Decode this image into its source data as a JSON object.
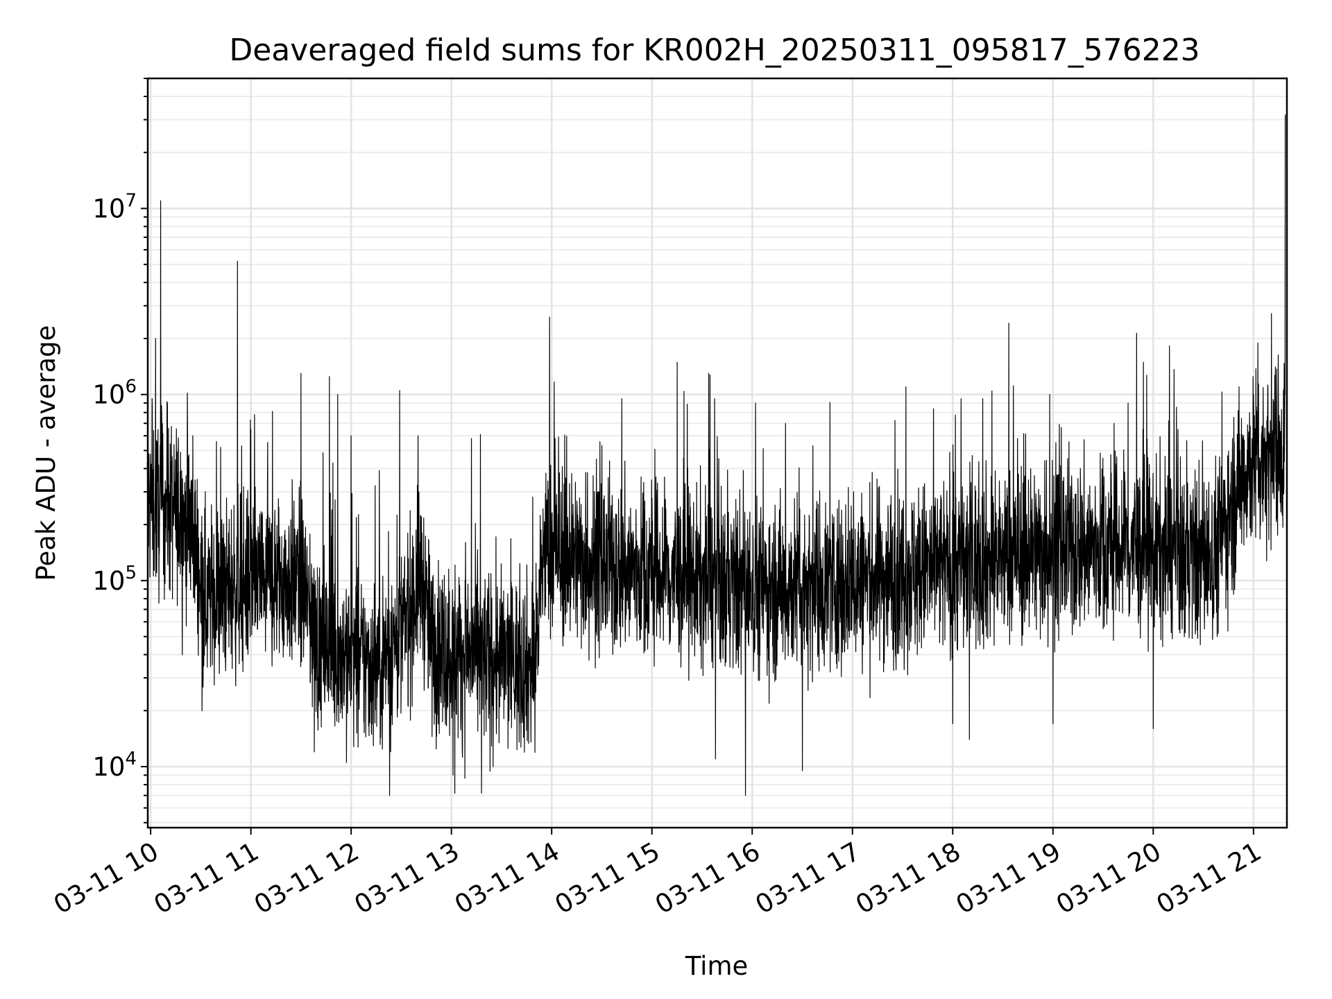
{
  "chart_data": {
    "type": "line",
    "title": "Deaveraged field sums for KR002H_20250311_095817_576223",
    "xlabel": "Time",
    "ylabel": "Peak ADU - average",
    "yscale": "log",
    "ylim": [
      4700,
      50000000
    ],
    "xlim": [
      "2025-03-11T09:58:17",
      "2025-03-11T21:20:00"
    ],
    "grid": true,
    "line_color": "#000000",
    "x_ticks": [
      {
        "t": "2025-03-11T10:00",
        "label": "03-11 10"
      },
      {
        "t": "2025-03-11T11:00",
        "label": "03-11 11"
      },
      {
        "t": "2025-03-11T12:00",
        "label": "03-11 12"
      },
      {
        "t": "2025-03-11T13:00",
        "label": "03-11 13"
      },
      {
        "t": "2025-03-11T14:00",
        "label": "03-11 14"
      },
      {
        "t": "2025-03-11T15:00",
        "label": "03-11 15"
      },
      {
        "t": "2025-03-11T16:00",
        "label": "03-11 16"
      },
      {
        "t": "2025-03-11T17:00",
        "label": "03-11 17"
      },
      {
        "t": "2025-03-11T18:00",
        "label": "03-11 18"
      },
      {
        "t": "2025-03-11T19:00",
        "label": "03-11 19"
      },
      {
        "t": "2025-03-11T20:00",
        "label": "03-11 20"
      },
      {
        "t": "2025-03-11T21:00",
        "label": "03-11 21"
      }
    ],
    "y_ticks": [
      {
        "value": 10000,
        "base": "10",
        "exp": "4"
      },
      {
        "value": 100000,
        "base": "10",
        "exp": "5"
      },
      {
        "value": 1000000,
        "base": "10",
        "exp": "6"
      },
      {
        "value": 10000000,
        "base": "10",
        "exp": "7"
      }
    ],
    "series": [
      {
        "baseline": [
          {
            "t": "2025-03-11T09:58",
            "value": 250000
          },
          {
            "t": "2025-03-11T10:10",
            "value": 250000
          },
          {
            "t": "2025-03-11T10:25",
            "value": 200000
          },
          {
            "t": "2025-03-11T10:32",
            "value": 80000
          },
          {
            "t": "2025-03-11T11:00",
            "value": 100000
          },
          {
            "t": "2025-03-11T11:30",
            "value": 100000
          },
          {
            "t": "2025-03-11T11:40",
            "value": 45000
          },
          {
            "t": "2025-03-11T12:15",
            "value": 35000
          },
          {
            "t": "2025-03-11T12:30",
            "value": 50000
          },
          {
            "t": "2025-03-11T12:42",
            "value": 110000
          },
          {
            "t": "2025-03-11T12:48",
            "value": 45000
          },
          {
            "t": "2025-03-11T13:10",
            "value": 40000
          },
          {
            "t": "2025-03-11T13:50",
            "value": 35000
          },
          {
            "t": "2025-03-11T13:55",
            "value": 150000
          },
          {
            "t": "2025-03-11T14:30",
            "value": 120000
          },
          {
            "t": "2025-03-11T15:30",
            "value": 100000
          },
          {
            "t": "2025-03-11T16:00",
            "value": 90000
          },
          {
            "t": "2025-03-11T17:00",
            "value": 100000
          },
          {
            "t": "2025-03-11T18:00",
            "value": 120000
          },
          {
            "t": "2025-03-11T19:00",
            "value": 150000
          },
          {
            "t": "2025-03-11T19:50",
            "value": 150000
          },
          {
            "t": "2025-03-11T20:35",
            "value": 130000
          },
          {
            "t": "2025-03-11T20:55",
            "value": 400000
          },
          {
            "t": "2025-03-11T21:19",
            "value": 550000
          }
        ],
        "spikes": [
          {
            "t": "2025-03-11T10:03",
            "value": 2000000
          },
          {
            "t": "2025-03-11T10:06",
            "value": 11000000
          },
          {
            "t": "2025-03-11T10:07",
            "value": 700000
          },
          {
            "t": "2025-03-11T10:10",
            "value": 900000
          },
          {
            "t": "2025-03-11T10:52",
            "value": 5200000
          },
          {
            "t": "2025-03-11T11:00",
            "value": 650000
          },
          {
            "t": "2025-03-11T11:30",
            "value": 1300000
          },
          {
            "t": "2025-03-11T11:47",
            "value": 1250000
          },
          {
            "t": "2025-03-11T11:52",
            "value": 1000000
          },
          {
            "t": "2025-03-11T12:00",
            "value": 600000
          },
          {
            "t": "2025-03-11T12:29",
            "value": 1050000
          },
          {
            "t": "2025-03-11T12:40",
            "value": 600000
          },
          {
            "t": "2025-03-11T13:12",
            "value": 580000
          },
          {
            "t": "2025-03-11T14:02",
            "value": 580000
          },
          {
            "t": "2025-03-11T14:42",
            "value": 950000
          },
          {
            "t": "2025-03-11T15:34",
            "value": 1300000
          },
          {
            "t": "2025-03-11T16:02",
            "value": 900000
          },
          {
            "t": "2025-03-11T16:20",
            "value": 700000
          },
          {
            "t": "2025-03-11T17:32",
            "value": 1100000
          },
          {
            "t": "2025-03-11T18:05",
            "value": 950000
          },
          {
            "t": "2025-03-11T18:18",
            "value": 950000
          },
          {
            "t": "2025-03-11T18:58",
            "value": 1000000
          },
          {
            "t": "2025-03-11T19:45",
            "value": 900000
          },
          {
            "t": "2025-03-11T21:00",
            "value": 1000000
          },
          {
            "t": "2025-03-11T21:19",
            "value": 32000000
          }
        ],
        "dips": [
          {
            "t": "2025-03-11T11:38",
            "value": 12000
          },
          {
            "t": "2025-03-11T12:23",
            "value": 7000
          },
          {
            "t": "2025-03-11T13:01",
            "value": 9000
          },
          {
            "t": "2025-03-11T13:02",
            "value": 7200
          },
          {
            "t": "2025-03-11T13:18",
            "value": 7200
          },
          {
            "t": "2025-03-11T13:25",
            "value": 10000
          },
          {
            "t": "2025-03-11T15:38",
            "value": 11000
          },
          {
            "t": "2025-03-11T15:56",
            "value": 7000
          },
          {
            "t": "2025-03-11T16:30",
            "value": 9500
          },
          {
            "t": "2025-03-11T18:00",
            "value": 17000
          },
          {
            "t": "2025-03-11T18:10",
            "value": 14000
          },
          {
            "t": "2025-03-11T19:00",
            "value": 17000
          },
          {
            "t": "2025-03-11T20:00",
            "value": 16000
          }
        ]
      }
    ]
  }
}
